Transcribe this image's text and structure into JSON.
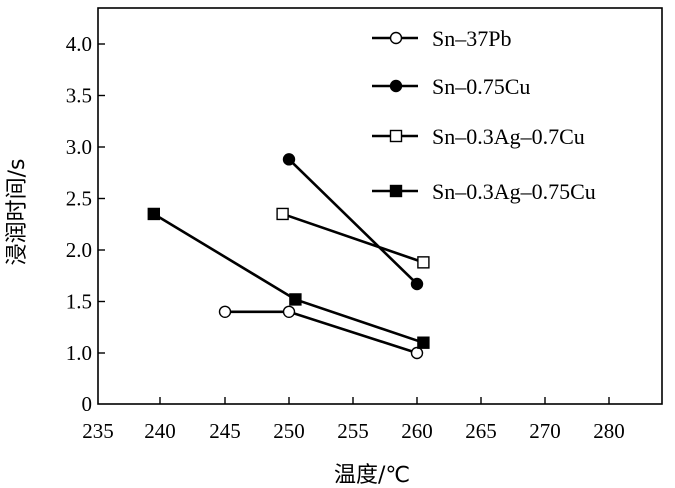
{
  "chart_data": {
    "type": "line",
    "title": "",
    "xlabel": "温度/℃",
    "ylabel": "浸润时间/s",
    "xlim": [
      235,
      290
    ],
    "ylim": [
      0,
      4.4
    ],
    "xticks": [
      235,
      240,
      245,
      250,
      255,
      260,
      265,
      270,
      280
    ],
    "xtick_labels": [
      "235",
      "240",
      "245",
      "250",
      "255",
      "260",
      "265",
      "270",
      "280"
    ],
    "yticks": [
      0,
      1.0,
      1.5,
      2.0,
      2.5,
      3.0,
      3.5,
      4.0
    ],
    "ytick_labels": [
      "0",
      "1.0",
      "1.5",
      "2.0",
      "2.5",
      "3.0",
      "3.5",
      "4.0"
    ],
    "grid": false,
    "legend_position": "top-right",
    "series": [
      {
        "name": "Sn–37Pb",
        "marker": "circle-open",
        "color": "#000000",
        "x": [
          245,
          250,
          260
        ],
        "y": [
          1.4,
          1.4,
          1.0
        ]
      },
      {
        "name": "Sn–0.75Cu",
        "marker": "circle-filled",
        "color": "#000000",
        "x": [
          250,
          260
        ],
        "y": [
          2.88,
          1.67
        ]
      },
      {
        "name": "Sn–0.3Ag–0.7Cu",
        "marker": "square-open",
        "color": "#000000",
        "x": [
          249.5,
          260.5
        ],
        "y": [
          2.35,
          1.88
        ]
      },
      {
        "name": "Sn–0.3Ag–0.75Cu",
        "marker": "square-filled",
        "color": "#000000",
        "x": [
          239.5,
          250.5,
          260.5
        ],
        "y": [
          2.35,
          1.52,
          1.1
        ]
      }
    ]
  }
}
